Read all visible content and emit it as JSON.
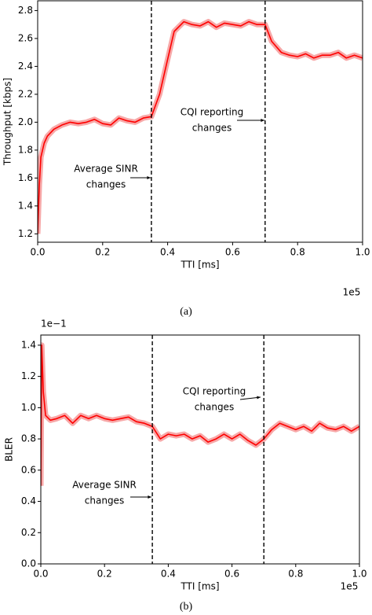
{
  "chart_data": [
    {
      "type": "line",
      "x_label": "TTI [ms]",
      "y_label": "Throughput [kbps]",
      "x_multiplier": "1e5",
      "caption": "(a)",
      "color": "#ff0000",
      "band_color": "#f7a8a8",
      "x": [
        0,
        0.005,
        0.01,
        0.02,
        0.03,
        0.05,
        0.075,
        0.1,
        0.125,
        0.15,
        0.175,
        0.2,
        0.225,
        0.25,
        0.275,
        0.3,
        0.325,
        0.35,
        0.375,
        0.4,
        0.42,
        0.45,
        0.475,
        0.5,
        0.525,
        0.55,
        0.575,
        0.6,
        0.625,
        0.65,
        0.675,
        0.7,
        0.72,
        0.75,
        0.775,
        0.8,
        0.825,
        0.85,
        0.875,
        0.9,
        0.925,
        0.95,
        0.975,
        1
      ],
      "values": [
        1.2,
        1.55,
        1.75,
        1.85,
        1.9,
        1.95,
        1.98,
        2.0,
        1.99,
        2.0,
        2.02,
        1.99,
        1.98,
        2.03,
        2.01,
        2.0,
        2.03,
        2.04,
        2.2,
        2.45,
        2.65,
        2.72,
        2.7,
        2.69,
        2.72,
        2.68,
        2.71,
        2.7,
        2.69,
        2.72,
        2.7,
        2.7,
        2.58,
        2.5,
        2.48,
        2.47,
        2.49,
        2.46,
        2.48,
        2.48,
        2.5,
        2.46,
        2.48,
        2.46
      ],
      "xlim": [
        0,
        1
      ],
      "ylim": [
        1.14,
        2.87
      ],
      "xticks": [
        {
          "value": 0,
          "label": "0.0"
        },
        0.2,
        0.4,
        0.6,
        0.8,
        {
          "value": 1,
          "label": "1.0"
        }
      ],
      "yticks": [
        1.2,
        1.4,
        1.6,
        1.8,
        {
          "value": 2,
          "label": "2.0"
        },
        2.2,
        2.4,
        2.6,
        2.8
      ],
      "vlines": [
        0.35,
        0.7
      ],
      "annotations": [
        {
          "lines": [
            "Average SINR",
            "changes"
          ]
        },
        {
          "lines": [
            "CQI reporting",
            "changes"
          ]
        }
      ]
    },
    {
      "type": "line",
      "x_label": "TTI [ms]",
      "y_label": "BLER",
      "x_multiplier": "1e5",
      "y_multiplier": "1e−1",
      "caption": "(b)",
      "color": "#ff0000",
      "band_color": "#f7a8a8",
      "x": [
        0,
        0.003,
        0.008,
        0.015,
        0.03,
        0.05,
        0.075,
        0.1,
        0.125,
        0.15,
        0.175,
        0.2,
        0.225,
        0.25,
        0.275,
        0.3,
        0.325,
        0.35,
        0.375,
        0.4,
        0.425,
        0.45,
        0.475,
        0.5,
        0.525,
        0.55,
        0.575,
        0.6,
        0.625,
        0.65,
        0.675,
        0.7,
        0.725,
        0.75,
        0.775,
        0.8,
        0.825,
        0.85,
        0.875,
        0.9,
        0.925,
        0.95,
        0.975,
        1
      ],
      "values": [
        0.5,
        1.4,
        1.1,
        0.95,
        0.92,
        0.93,
        0.95,
        0.9,
        0.95,
        0.93,
        0.95,
        0.93,
        0.92,
        0.93,
        0.94,
        0.91,
        0.9,
        0.88,
        0.8,
        0.83,
        0.82,
        0.83,
        0.8,
        0.82,
        0.78,
        0.8,
        0.83,
        0.8,
        0.83,
        0.79,
        0.76,
        0.8,
        0.86,
        0.9,
        0.88,
        0.86,
        0.88,
        0.85,
        0.9,
        0.87,
        0.86,
        0.88,
        0.85,
        0.88
      ],
      "xlim": [
        0,
        1
      ],
      "ylim": [
        0,
        1.465
      ],
      "xticks": [
        {
          "value": 0,
          "label": "0.0"
        },
        0.2,
        0.4,
        0.6,
        0.8,
        {
          "value": 1,
          "label": "1.0"
        }
      ],
      "yticks": [
        {
          "value": 0,
          "label": "0.0"
        },
        0.2,
        0.4,
        0.6,
        0.8,
        {
          "value": 1,
          "label": "1.0"
        },
        1.2,
        1.4
      ],
      "vlines": [
        0.35,
        0.7
      ],
      "annotations": [
        {
          "lines": [
            "CQI reporting",
            "changes"
          ]
        },
        {
          "lines": [
            "Average SINR",
            "changes"
          ]
        }
      ]
    }
  ]
}
